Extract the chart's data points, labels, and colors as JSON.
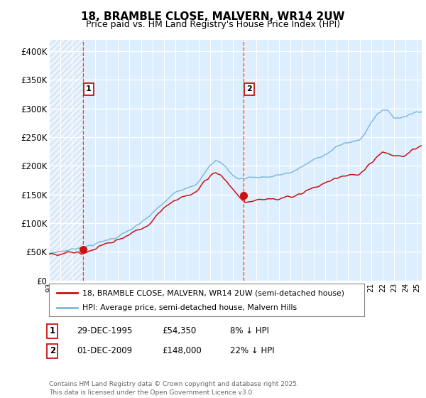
{
  "title": "18, BRAMBLE CLOSE, MALVERN, WR14 2UW",
  "subtitle": "Price paid vs. HM Land Registry's House Price Index (HPI)",
  "hpi_label": "HPI: Average price, semi-detached house, Malvern Hills",
  "price_label": "18, BRAMBLE CLOSE, MALVERN, WR14 2UW (semi-detached house)",
  "hpi_color": "#7ab8db",
  "price_color": "#cc1111",
  "bg_color": "#ddeeff",
  "grid_color": "#ffffff",
  "annotation1": {
    "label": "1",
    "date_val": 1995.95,
    "price": 54350,
    "date_str": "29-DEC-1995",
    "price_str": "£54,350",
    "pct_str": "8% ↓ HPI"
  },
  "annotation2": {
    "label": "2",
    "date_val": 2009.92,
    "price": 148000,
    "date_str": "01-DEC-2009",
    "price_str": "£148,000",
    "pct_str": "22% ↓ HPI"
  },
  "xmin": 1993.0,
  "xmax": 2025.4,
  "ymin": 0,
  "ymax": 420000,
  "yticks": [
    0,
    50000,
    100000,
    150000,
    200000,
    250000,
    300000,
    350000,
    400000
  ],
  "ytick_labels": [
    "£0",
    "£50K",
    "£100K",
    "£150K",
    "£200K",
    "£250K",
    "£300K",
    "£350K",
    "£400K"
  ],
  "footer": "Contains HM Land Registry data © Crown copyright and database right 2025.\nThis data is licensed under the Open Government Licence v3.0.",
  "hatch_xmax": 1995.95
}
